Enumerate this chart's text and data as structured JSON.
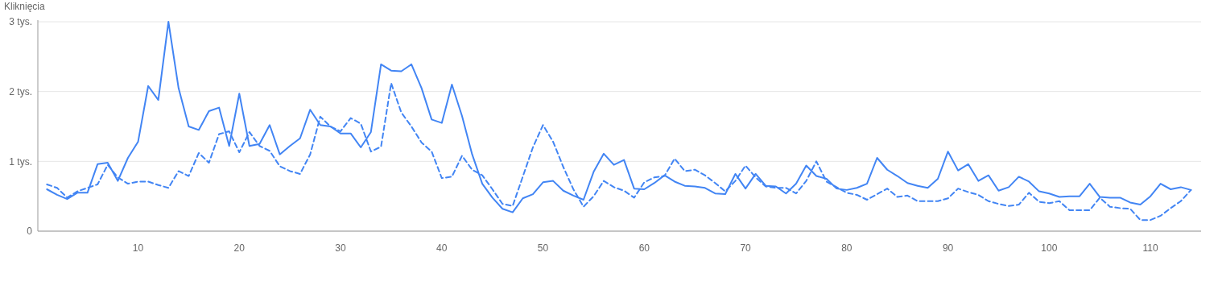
{
  "chart_data": {
    "type": "line",
    "ylabel": "Kliknięcia",
    "x": [
      1,
      2,
      3,
      4,
      5,
      6,
      7,
      8,
      9,
      10,
      11,
      12,
      13,
      14,
      15,
      16,
      17,
      18,
      19,
      20,
      21,
      22,
      23,
      24,
      25,
      26,
      27,
      28,
      29,
      30,
      31,
      32,
      33,
      34,
      35,
      36,
      37,
      38,
      39,
      40,
      41,
      42,
      43,
      44,
      45,
      46,
      47,
      48,
      49,
      50,
      51,
      52,
      53,
      54,
      55,
      56,
      57,
      58,
      59,
      60,
      61,
      62,
      63,
      64,
      65,
      66,
      67,
      68,
      69,
      70,
      71,
      72,
      73,
      74,
      75,
      76,
      77,
      78,
      79,
      80,
      81,
      82,
      83,
      84,
      85,
      86,
      87,
      88,
      89,
      90,
      91,
      92,
      93,
      94,
      95,
      96,
      97,
      98,
      99,
      100,
      101,
      102,
      103,
      104,
      105,
      106,
      107,
      108,
      109,
      110,
      111,
      112,
      113,
      114
    ],
    "series": [
      {
        "color": "#4285f4",
        "line_style": "solid",
        "values": [
          0.6,
          0.52,
          0.46,
          0.55,
          0.55,
          0.96,
          0.98,
          0.72,
          1.05,
          1.28,
          2.08,
          1.88,
          3.0,
          2.05,
          1.5,
          1.45,
          1.72,
          1.77,
          1.22,
          1.97,
          1.22,
          1.25,
          1.52,
          1.1,
          1.22,
          1.33,
          1.74,
          1.52,
          1.5,
          1.4,
          1.4,
          1.2,
          1.42,
          2.39,
          2.3,
          2.29,
          2.39,
          2.05,
          1.6,
          1.55,
          2.1,
          1.65,
          1.1,
          0.68,
          0.48,
          0.32,
          0.27,
          0.47,
          0.53,
          0.7,
          0.72,
          0.58,
          0.51,
          0.45,
          0.85,
          1.11,
          0.95,
          1.02,
          0.61,
          0.6,
          0.69,
          0.8,
          0.71,
          0.65,
          0.64,
          0.62,
          0.54,
          0.53,
          0.82,
          0.61,
          0.82,
          0.65,
          0.64,
          0.54,
          0.68,
          0.94,
          0.79,
          0.75,
          0.61,
          0.59,
          0.62,
          0.68,
          1.05,
          0.88,
          0.79,
          0.69,
          0.65,
          0.62,
          0.75,
          1.14,
          0.87,
          0.96,
          0.72,
          0.8,
          0.58,
          0.63,
          0.78,
          0.71,
          0.57,
          0.54,
          0.49,
          0.5,
          0.5,
          0.68,
          0.49,
          0.48,
          0.48,
          0.41,
          0.38,
          0.5,
          0.68,
          0.6,
          0.63,
          0.59
        ]
      },
      {
        "color": "#4285f4",
        "line_style": "dashed",
        "values": [
          0.67,
          0.62,
          0.48,
          0.57,
          0.62,
          0.67,
          0.95,
          0.77,
          0.68,
          0.71,
          0.71,
          0.66,
          0.62,
          0.86,
          0.79,
          1.12,
          0.98,
          1.39,
          1.43,
          1.13,
          1.42,
          1.22,
          1.15,
          0.93,
          0.86,
          0.82,
          1.1,
          1.64,
          1.5,
          1.43,
          1.62,
          1.54,
          1.14,
          1.21,
          2.12,
          1.7,
          1.5,
          1.27,
          1.14,
          0.76,
          0.78,
          1.08,
          0.88,
          0.8,
          0.6,
          0.39,
          0.36,
          0.78,
          1.2,
          1.52,
          1.28,
          0.92,
          0.6,
          0.35,
          0.5,
          0.72,
          0.63,
          0.58,
          0.48,
          0.7,
          0.77,
          0.79,
          1.04,
          0.86,
          0.88,
          0.8,
          0.69,
          0.57,
          0.72,
          0.94,
          0.77,
          0.64,
          0.62,
          0.62,
          0.54,
          0.72,
          1.0,
          0.71,
          0.63,
          0.55,
          0.52,
          0.45,
          0.53,
          0.61,
          0.49,
          0.51,
          0.43,
          0.43,
          0.43,
          0.47,
          0.61,
          0.56,
          0.52,
          0.43,
          0.39,
          0.36,
          0.38,
          0.55,
          0.42,
          0.4,
          0.43,
          0.3,
          0.3,
          0.3,
          0.48,
          0.35,
          0.33,
          0.32,
          0.16,
          0.16,
          0.22,
          0.33,
          0.43,
          0.59
        ]
      }
    ],
    "xlim": [
      0.1,
      115
    ],
    "ylim": [
      0,
      3
    ],
    "xticks": [
      10,
      20,
      30,
      40,
      50,
      60,
      70,
      80,
      90,
      100,
      110
    ],
    "yticks": [
      0,
      {
        "value": 1,
        "label": "1 tys."
      },
      {
        "value": 2,
        "label": "2 tys."
      },
      {
        "value": 3,
        "label": "3 tys."
      }
    ],
    "grid": "y"
  }
}
